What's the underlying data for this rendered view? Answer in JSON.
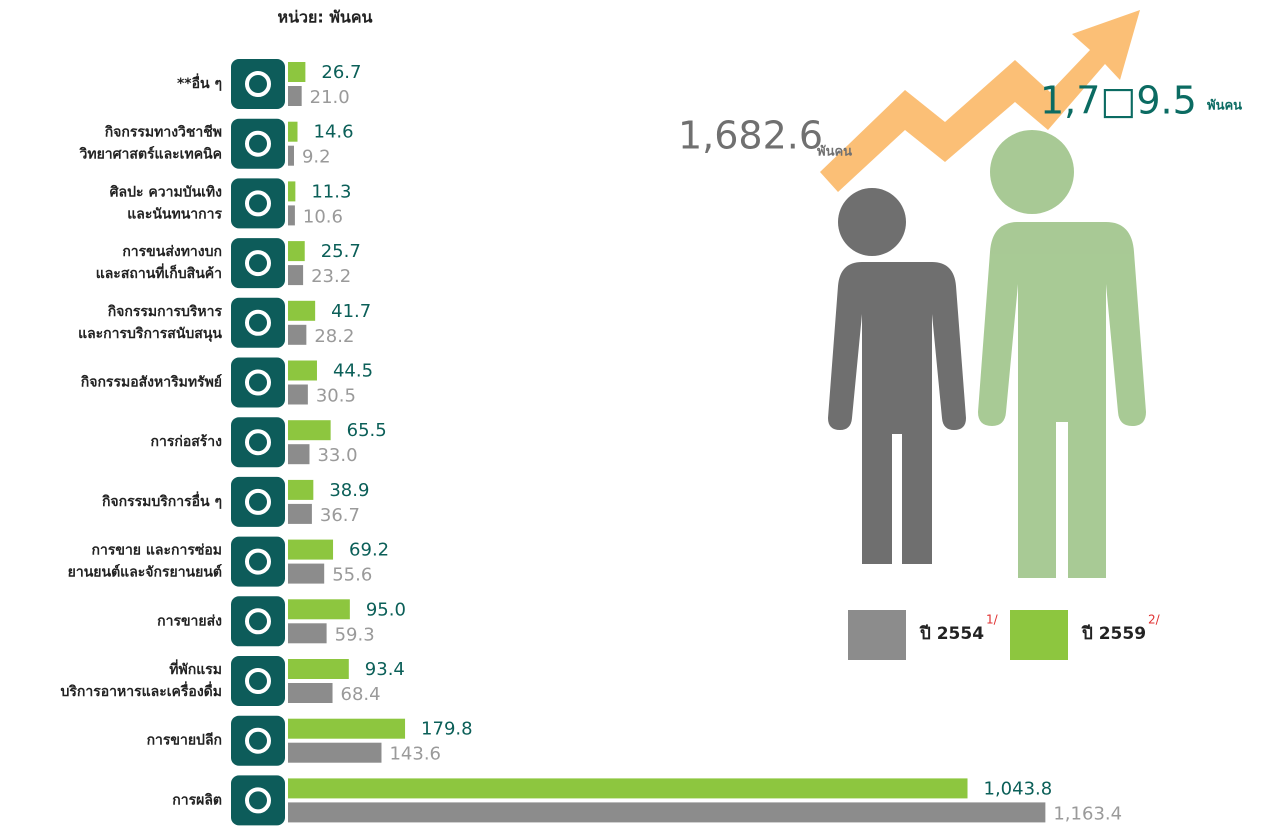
{
  "chart_data": {
    "type": "bar",
    "orientation": "horizontal",
    "unit_label": "หน่วย: พันคน",
    "categories": [
      [
        "**อื่น ๆ"
      ],
      [
        "กิจกรรมทางวิชาชีพ",
        "วิทยาศาสตร์และเทคนิค"
      ],
      [
        "ศิลปะ ความบันเทิง",
        "และนันทนาการ"
      ],
      [
        "การขนส่งทางบก",
        "และสถานที่เก็บสินค้า"
      ],
      [
        "กิจกรรมการบริหาร",
        "และการบริการสนับสนุน"
      ],
      [
        "กิจกรรมอสังหาริมทรัพย์"
      ],
      [
        "การก่อสร้าง"
      ],
      [
        "กิจกรรมบริการอื่น ๆ"
      ],
      [
        "การขาย และการซ่อม",
        "ยานยนต์และจักรยานยนต์"
      ],
      [
        "การขายส่ง"
      ],
      [
        "ที่พักแรม",
        "บริการอาหารและเครื่องดื่ม"
      ],
      [
        "การขายปลีก"
      ],
      [
        "การผลิต"
      ]
    ],
    "series": [
      {
        "name": "ปี 2554",
        "note": "1/",
        "color": "#8c8c8c",
        "label_color": "#9a9a9a",
        "values": [
          21.0,
          9.2,
          10.6,
          23.2,
          28.2,
          30.5,
          33.0,
          36.7,
          55.6,
          59.3,
          68.4,
          143.6,
          1163.4
        ],
        "value_labels": [
          "21.0",
          "9.2",
          "10.6",
          "23.2",
          "28.2",
          "30.5",
          "33.0",
          "36.7",
          "55.6",
          "59.3",
          "68.4",
          "143.6",
          "1,163.4"
        ]
      },
      {
        "name": "ปี 2559",
        "note": "2/",
        "color": "#8dc63f",
        "label_color": "#0b5f58",
        "values": [
          26.7,
          14.6,
          11.3,
          25.7,
          41.7,
          44.5,
          65.5,
          38.9,
          69.2,
          95.0,
          93.4,
          179.8,
          1043.8
        ],
        "value_labels": [
          "26.7",
          "14.6",
          "11.3",
          "25.7",
          "41.7",
          "44.5",
          "65.5",
          "38.9",
          "69.2",
          "95.0",
          "93.4",
          "179.8",
          "1,043.8"
        ]
      }
    ],
    "totals": [
      {
        "label": "1,682.6",
        "unit": "พันคน"
      },
      {
        "label": "1,7□9.5",
        "unit": "พันคน"
      }
    ]
  }
}
